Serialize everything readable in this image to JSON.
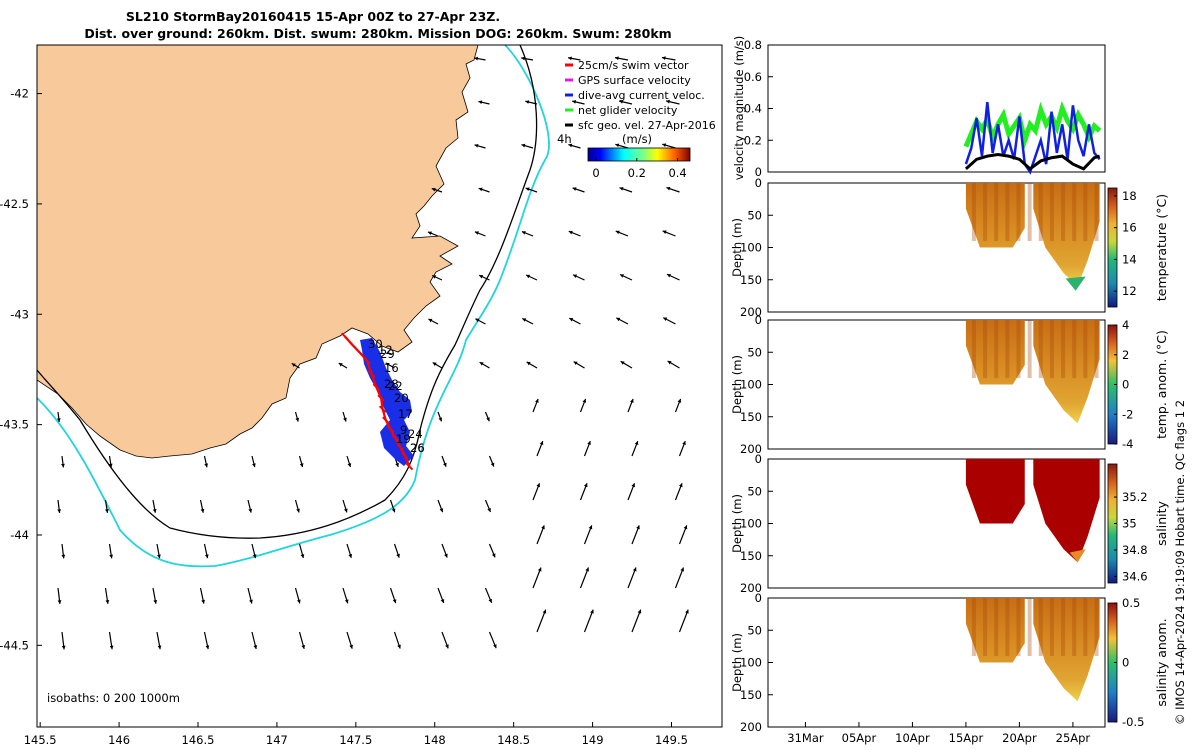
{
  "title": {
    "line1": "SL210 StormBay20160415 15-Apr 00Z to 27-Apr 23Z.",
    "line2": "Dist. over ground: 260km. Dist. swum: 280km. Mission DOG: 260km. Swum: 280km"
  },
  "colors": {
    "land": "#f8c99a",
    "isobath_200": "#000000",
    "isobath_1000": "#22d4dc",
    "track": "#ff0000",
    "dive_avg": "#1020e0",
    "net_glider": "#22ee22",
    "sfc_geo": "#000000",
    "gps": "#dd22dd",
    "sat_red": "#aa0000"
  },
  "chart_data": [
    {
      "type": "map",
      "name": "glider-track-map",
      "xticks": [
        "145.5",
        "146",
        "146.5",
        "147",
        "147.5",
        "148",
        "148.5",
        "149",
        "149.5"
      ],
      "yticks": [
        "-42",
        "-42.5",
        "-43",
        "-43.5",
        "-44",
        "-44.5"
      ],
      "xlim": [
        145.48,
        149.82
      ],
      "ylim": [
        -44.87,
        -41.78
      ],
      "legend": [
        {
          "label": "25cm/s swim vector",
          "color": "#ff0000"
        },
        {
          "label": "GPS surface velocity",
          "color": "#dd22dd"
        },
        {
          "label": "dive-avg current veloc.",
          "color": "#1020e0"
        },
        {
          "label": "net glider velocity",
          "color": "#22ee22"
        },
        {
          "label": "sfc geo. vel. 27-Apr-2016",
          "color": "#000000"
        }
      ],
      "colorbar": {
        "label": "(m/s)",
        "time_label": "4h",
        "ticks": [
          "0",
          "0.2",
          "0.4"
        ],
        "range": [
          0,
          0.5
        ]
      },
      "isobath_label": "isobaths: 0  200  1000m",
      "track_labels": [
        "30",
        "12",
        "29",
        "16",
        "22",
        "28",
        "20",
        "17",
        "9",
        "24",
        "19",
        "26",
        "26"
      ],
      "track": [
        [
          147.43,
          -43.1
        ],
        [
          147.48,
          -43.14
        ],
        [
          147.52,
          -43.17
        ],
        [
          147.57,
          -43.21
        ],
        [
          147.6,
          -43.27
        ],
        [
          147.63,
          -43.33
        ],
        [
          147.66,
          -43.38
        ],
        [
          147.67,
          -43.43
        ],
        [
          147.69,
          -43.48
        ],
        [
          147.72,
          -43.52
        ],
        [
          147.75,
          -43.56
        ],
        [
          147.78,
          -43.6
        ],
        [
          147.81,
          -43.64
        ],
        [
          147.84,
          -43.69
        ]
      ]
    },
    {
      "type": "line",
      "name": "velocity-magnitude-panel",
      "ylabel": "velocity magnitude (m/s)",
      "ylim": [
        0,
        0.8
      ],
      "yticks": [
        "0",
        "0.2",
        "0.4",
        "0.6",
        "0.8"
      ],
      "x_range_days": [
        0,
        36
      ],
      "series": [
        {
          "name": "net glider velocity",
          "color": "#22ee22",
          "x": [
            15,
            15.5,
            16,
            16.5,
            17,
            17.5,
            18,
            18.5,
            19,
            19.5,
            20,
            20.5,
            21,
            21.5,
            22,
            22.5,
            23,
            23.5,
            24,
            24.5,
            25,
            25.5,
            26,
            26.5,
            27,
            27.5
          ],
          "values": [
            0.16,
            0.24,
            0.32,
            0.27,
            0.33,
            0.22,
            0.3,
            0.36,
            0.24,
            0.29,
            0.34,
            0.2,
            0.3,
            0.26,
            0.39,
            0.3,
            0.35,
            0.28,
            0.4,
            0.32,
            0.27,
            0.36,
            0.3,
            0.22,
            0.29,
            0.26
          ]
        },
        {
          "name": "dive-avg current veloc.",
          "color": "#1020e0",
          "x": [
            15,
            15.5,
            16,
            16.5,
            17,
            17.5,
            18,
            18.5,
            19,
            19.5,
            20,
            20.5,
            21,
            21.5,
            22,
            22.5,
            23,
            23.5,
            24,
            24.5,
            25,
            25.5,
            26,
            26.5,
            27,
            27.5
          ],
          "values": [
            0.05,
            0.15,
            0.34,
            0.1,
            0.44,
            0.12,
            0.3,
            0.1,
            0.2,
            0.08,
            0.35,
            0.05,
            0.0,
            0.1,
            0.2,
            0.05,
            0.38,
            0.12,
            0.3,
            0.08,
            0.42,
            0.2,
            0.1,
            0.3,
            0.12,
            0.08
          ]
        },
        {
          "name": "sfc geo. vel.",
          "color": "#000000",
          "x": [
            15,
            16,
            17,
            18,
            19,
            20,
            21,
            22,
            23,
            24,
            25,
            26,
            27,
            27.5
          ],
          "values": [
            0.02,
            0.08,
            0.1,
            0.11,
            0.1,
            0.08,
            0.02,
            0.07,
            0.09,
            0.1,
            0.05,
            0.02,
            0.09,
            0.1
          ]
        }
      ]
    },
    {
      "type": "heatmap",
      "name": "temperature-panel",
      "ylabel": "Depth (m)",
      "ylim": [
        200,
        0
      ],
      "yticks": [
        "0",
        "50",
        "100",
        "150",
        "200"
      ],
      "colorbar_label": "temperature (°C)",
      "colorbar_ticks": [
        "12",
        "14",
        "16",
        "18"
      ],
      "colorbar_range": [
        11,
        18.5
      ]
    },
    {
      "type": "heatmap",
      "name": "temp-anomaly-panel",
      "ylabel": "Depth (m)",
      "ylim": [
        200,
        0
      ],
      "yticks": [
        "0",
        "50",
        "100",
        "150",
        "200"
      ],
      "colorbar_label": "temp. anom. (°C)",
      "colorbar_ticks": [
        "-4",
        "-2",
        "0",
        "2",
        "4"
      ],
      "colorbar_range": [
        -4,
        4
      ]
    },
    {
      "type": "heatmap",
      "name": "salinity-panel",
      "ylabel": "Depth (m)",
      "ylim": [
        200,
        0
      ],
      "yticks": [
        "0",
        "50",
        "100",
        "150",
        "200"
      ],
      "colorbar_label": "salinity",
      "colorbar_ticks": [
        "34.6",
        "34.8",
        "35",
        "35.2"
      ],
      "colorbar_range": [
        34.55,
        35.45
      ]
    },
    {
      "type": "heatmap",
      "name": "salinity-anomaly-panel",
      "ylabel": "Depth (m)",
      "ylim": [
        200,
        0
      ],
      "yticks": [
        "0",
        "50",
        "100",
        "150",
        "200"
      ],
      "colorbar_label": "salinity anom.",
      "colorbar_ticks": [
        "-0.5",
        "0",
        "0.5"
      ],
      "colorbar_range": [
        -0.5,
        0.5
      ]
    }
  ],
  "time_axis": {
    "ticks": [
      "31Mar",
      "05Apr",
      "10Apr",
      "15Apr",
      "20Apr",
      "25Apr"
    ],
    "tick_days": [
      0,
      5,
      10,
      15,
      20,
      25
    ],
    "range_days": [
      -3.5,
      28
    ]
  },
  "credit": "© IMOS 14-Apr-2024 19:19:09 Hobart time. QC flags 1  2"
}
